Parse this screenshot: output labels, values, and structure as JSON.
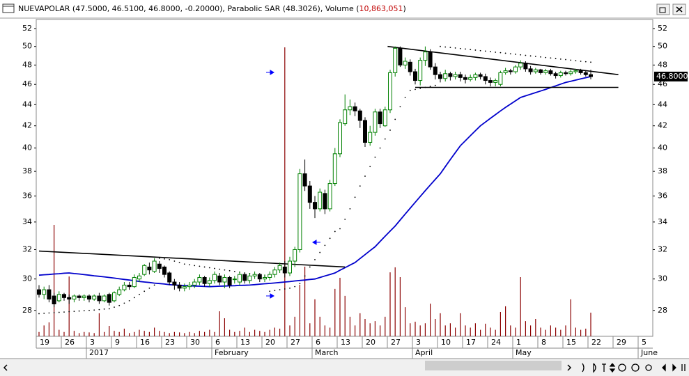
{
  "chart_data": {
    "type": "candlestick",
    "title": "NUEVAPOLAR (47.5000, 46.5100, 46.8000, -0.20000), Parabolic SAR (48.3026), Volume (",
    "volume_header": "10,863,051",
    "title_end": ")",
    "log_scale": true,
    "grid": false,
    "ylim": [
      26.45,
      53.05
    ],
    "yticks": [
      28,
      30,
      32,
      34,
      36,
      38,
      40,
      42,
      44,
      46,
      48,
      50,
      52
    ],
    "y2lim": [
      0,
      145600000
    ],
    "up_color": "#008000",
    "down_color": "#000000",
    "sar_color": "#000000",
    "ma_color": "#0000cc",
    "volume_color": "#8b0000",
    "trendline_color": "#000000",
    "last_value": {
      "value": 46.8,
      "label": "46.8000"
    },
    "categories": [
      "19",
      null,
      null,
      null,
      null,
      "26",
      null,
      null,
      null,
      null,
      "3",
      null,
      null,
      null,
      null,
      "9",
      null,
      null,
      null,
      null,
      "16",
      null,
      null,
      null,
      null,
      "23",
      null,
      null,
      null,
      null,
      "30",
      null,
      null,
      null,
      null,
      "6",
      null,
      null,
      null,
      null,
      "13",
      null,
      null,
      null,
      null,
      "20",
      null,
      null,
      null,
      null,
      "27",
      null,
      null,
      null,
      null,
      "6",
      null,
      null,
      null,
      null,
      "13",
      null,
      null,
      null,
      null,
      "20",
      null,
      null,
      null,
      null,
      "27",
      null,
      null,
      null,
      null,
      "3",
      null,
      null,
      null,
      null,
      "10",
      null,
      null,
      null,
      null,
      "17",
      null,
      null,
      null,
      null,
      "24",
      null,
      null,
      null,
      null,
      "1",
      null,
      null,
      null,
      null,
      "8",
      null,
      null,
      null,
      null,
      "15",
      null,
      null,
      null,
      null,
      "22",
      null,
      null,
      null,
      null,
      "29",
      null,
      null,
      null,
      null,
      "5"
    ],
    "month_ticks": [
      {
        "value": 10,
        "label": "2017"
      },
      {
        "value": 35,
        "label": "February"
      },
      {
        "value": 55,
        "label": "March"
      },
      {
        "value": 75,
        "label": "April"
      },
      {
        "value": 95,
        "label": "May"
      },
      {
        "value": 120,
        "label": "June"
      }
    ],
    "open": [
      29.3,
      29.0,
      29.3,
      28.9,
      28.6,
      29.0,
      28.8,
      28.7,
      28.9,
      28.8,
      28.9,
      28.7,
      28.9,
      28.6,
      29.0,
      28.6,
      29.0,
      29.3,
      29.6,
      29.5,
      30.0,
      30.3,
      30.8,
      30.5,
      31.0,
      30.8,
      30.4,
      29.8,
      29.6,
      29.4,
      29.5,
      29.6,
      29.8,
      30.1,
      29.7,
      29.9,
      30.2,
      29.8,
      30.1,
      30.0,
      29.8,
      30.3,
      29.9,
      30.2,
      30.3,
      30.0,
      30.1,
      30.3,
      30.6,
      30.8,
      30.4,
      31.2,
      32.0,
      37.8,
      36.8,
      35.5,
      35.0,
      36.2,
      35.0,
      37.0,
      39.5,
      42.2,
      43.5,
      43.8,
      43.4,
      42.5,
      40.5,
      41.4,
      43.3,
      42.0,
      43.5,
      47.2,
      49.8,
      48.0,
      48.3,
      47.3,
      46.4,
      48.5,
      49.4,
      47.8,
      47.0,
      46.6,
      47.1,
      46.8,
      47.0,
      46.7,
      46.5,
      46.7,
      47.0,
      46.8,
      46.4,
      46.2,
      46.0,
      47.2,
      47.4,
      47.3,
      47.8,
      48.2,
      47.6,
      47.3,
      47.5,
      47.2,
      47.4,
      47.1,
      46.9,
      47.2,
      47.1,
      47.3,
      47.4,
      47.2,
      47.0,
      null,
      null,
      null,
      null,
      null,
      null,
      null,
      null,
      null,
      null
    ],
    "high": [
      29.6,
      29.5,
      29.6,
      29.1,
      29.2,
      29.1,
      29.0,
      29.0,
      29.0,
      29.0,
      29.0,
      29.0,
      29.1,
      29.0,
      29.1,
      29.2,
      29.5,
      29.8,
      29.8,
      30.3,
      30.4,
      31.0,
      31.1,
      31.4,
      31.2,
      30.9,
      30.5,
      30.0,
      29.8,
      29.7,
      29.8,
      30.0,
      30.3,
      30.2,
      30.1,
      30.5,
      30.4,
      30.3,
      30.2,
      30.2,
      30.5,
      30.4,
      30.4,
      30.5,
      30.4,
      30.3,
      30.5,
      30.8,
      31.1,
      31.2,
      31.5,
      32.2,
      38.2,
      39.0,
      37.2,
      36.0,
      36.6,
      36.5,
      37.3,
      40.0,
      42.6,
      45.0,
      44.5,
      44.2,
      43.6,
      42.8,
      42.0,
      43.6,
      43.6,
      43.8,
      47.5,
      50.0,
      50.0,
      48.8,
      48.6,
      47.6,
      48.8,
      50.0,
      49.7,
      48.2,
      47.3,
      47.5,
      47.3,
      47.3,
      47.3,
      47.0,
      47.0,
      47.2,
      47.2,
      47.1,
      46.7,
      46.6,
      47.4,
      47.7,
      47.6,
      48.0,
      48.5,
      48.4,
      47.9,
      47.7,
      47.6,
      47.6,
      47.6,
      47.3,
      47.4,
      47.4,
      47.5,
      47.6,
      47.6,
      47.4,
      47.5,
      null,
      null,
      null,
      null,
      null,
      null,
      null,
      null,
      null,
      null
    ],
    "low": [
      28.8,
      28.7,
      28.5,
      28.2,
      28.5,
      28.6,
      28.4,
      28.5,
      28.6,
      28.6,
      28.5,
      28.6,
      28.4,
      28.5,
      28.3,
      28.5,
      28.9,
      29.2,
      29.3,
      29.4,
      29.8,
      30.2,
      30.3,
      30.4,
      30.4,
      30.1,
      29.6,
      29.3,
      29.2,
      29.2,
      29.3,
      29.4,
      29.6,
      29.5,
      29.5,
      29.7,
      29.6,
      29.4,
      29.4,
      29.7,
      29.6,
      29.7,
      29.7,
      30.0,
      29.8,
      29.8,
      29.9,
      30.1,
      30.4,
      30.1,
      30.2,
      30.8,
      31.8,
      36.4,
      35.0,
      34.3,
      34.8,
      34.6,
      34.8,
      36.8,
      39.2,
      42.0,
      43.0,
      42.9,
      41.8,
      40.1,
      40.2,
      41.1,
      41.8,
      41.9,
      43.2,
      46.8,
      47.8,
      47.6,
      46.9,
      46.0,
      45.9,
      47.9,
      47.5,
      46.5,
      46.2,
      46.3,
      46.4,
      46.5,
      46.3,
      46.1,
      46.3,
      46.4,
      46.5,
      46.0,
      45.8,
      45.8,
      45.8,
      47.0,
      47.0,
      47.1,
      47.5,
      47.3,
      47.0,
      47.1,
      47.0,
      47.0,
      46.9,
      46.6,
      46.7,
      46.9,
      46.9,
      47.1,
      47.0,
      46.8,
      46.51,
      null,
      null,
      null,
      null,
      null,
      null,
      null,
      null,
      null,
      null
    ],
    "close": [
      29.0,
      29.3,
      28.7,
      28.4,
      29.0,
      28.8,
      28.7,
      28.9,
      28.8,
      28.9,
      28.7,
      28.9,
      28.6,
      28.9,
      28.5,
      29.1,
      29.3,
      29.6,
      29.5,
      30.1,
      30.2,
      30.9,
      30.6,
      31.2,
      30.7,
      30.3,
      29.8,
      29.6,
      29.4,
      29.5,
      29.6,
      29.8,
      30.1,
      29.7,
      29.9,
      30.3,
      29.8,
      30.1,
      29.6,
      30.0,
      30.3,
      29.9,
      30.2,
      30.3,
      30.0,
      30.1,
      30.3,
      30.6,
      30.9,
      30.4,
      31.2,
      32.0,
      37.8,
      36.8,
      35.5,
      35.0,
      36.3,
      35.0,
      37.0,
      39.5,
      42.3,
      43.5,
      43.8,
      43.4,
      42.5,
      40.5,
      41.4,
      43.3,
      42.2,
      43.5,
      47.2,
      49.8,
      48.0,
      48.4,
      47.3,
      46.4,
      48.5,
      49.4,
      47.8,
      47.0,
      46.6,
      47.1,
      46.8,
      47.0,
      46.7,
      46.5,
      46.7,
      47.0,
      46.8,
      46.4,
      46.2,
      46.4,
      47.2,
      47.4,
      47.3,
      47.8,
      48.2,
      47.6,
      47.3,
      47.5,
      47.2,
      47.4,
      47.1,
      46.9,
      47.2,
      47.1,
      47.3,
      47.4,
      47.2,
      47.0,
      46.8,
      null,
      null,
      null,
      null,
      null,
      null,
      null,
      null,
      null,
      null
    ],
    "sar": [
      27.8,
      27.82,
      27.84,
      27.86,
      27.88,
      27.9,
      27.92,
      27.94,
      27.96,
      27.98,
      28.0,
      28.02,
      28.05,
      28.08,
      28.1,
      28.2,
      28.3,
      28.45,
      28.6,
      28.8,
      29.0,
      29.2,
      29.4,
      29.6,
      31.4,
      31.35,
      31.3,
      31.2,
      31.1,
      31.0,
      30.95,
      30.9,
      30.85,
      30.8,
      30.75,
      30.7,
      30.65,
      30.6,
      30.55,
      30.5,
      30.45,
      30.4,
      30.35,
      30.3,
      30.25,
      30.2,
      29.2,
      29.25,
      29.3,
      29.35,
      29.4,
      29.5,
      29.7,
      30.2,
      30.8,
      31.3,
      31.8,
      32.3,
      32.8,
      33.3,
      33.5,
      34.2,
      35.0,
      35.9,
      36.8,
      37.6,
      38.4,
      39.2,
      40.0,
      40.8,
      41.6,
      42.6,
      43.8,
      44.7,
      45.4,
      45.5,
      45.6,
      45.7,
      45.8,
      45.9,
      50.0,
      49.94,
      49.89,
      49.83,
      49.77,
      49.72,
      49.66,
      49.6,
      49.54,
      49.49,
      49.43,
      49.37,
      49.32,
      49.26,
      49.2,
      49.15,
      49.09,
      49.03,
      48.97,
      48.92,
      48.86,
      48.8,
      48.75,
      48.69,
      48.63,
      48.58,
      48.52,
      48.46,
      48.4,
      48.35,
      48.3026,
      null,
      null,
      null,
      null,
      null,
      null,
      null,
      null,
      null,
      null
    ],
    "moving_average": [
      30.25,
      30.28,
      30.3,
      30.33,
      30.35,
      30.38,
      30.4,
      30.36,
      30.33,
      30.29,
      30.25,
      30.21,
      30.18,
      30.14,
      30.1,
      30.06,
      30.01,
      29.97,
      29.93,
      29.89,
      29.84,
      29.8,
      29.77,
      29.73,
      29.7,
      29.67,
      29.63,
      29.6,
      29.59,
      29.57,
      29.56,
      29.54,
      29.53,
      29.51,
      29.5,
      29.51,
      29.53,
      29.54,
      29.55,
      29.56,
      29.58,
      29.59,
      29.6,
      29.63,
      29.66,
      29.69,
      29.71,
      29.74,
      29.77,
      29.8,
      29.83,
      29.87,
      29.9,
      29.93,
      29.97,
      30.0,
      30.1,
      30.2,
      30.3,
      30.4,
      30.58,
      30.75,
      30.93,
      31.1,
      31.38,
      31.65,
      31.93,
      32.2,
      32.58,
      32.95,
      33.33,
      33.7,
      34.15,
      34.6,
      35.05,
      35.5,
      35.96,
      36.42,
      36.88,
      37.34,
      37.8,
      38.4,
      39.0,
      39.6,
      40.2,
      40.65,
      41.1,
      41.55,
      42.0,
      42.35,
      42.7,
      43.05,
      43.4,
      43.73,
      44.05,
      44.38,
      44.7,
      44.86,
      45.02,
      45.18,
      45.34,
      45.5,
      45.68,
      45.85,
      46.03,
      46.2,
      46.32,
      46.44,
      46.56,
      46.68,
      46.8,
      null,
      null,
      null,
      null,
      null,
      null,
      null,
      null,
      null,
      null
    ],
    "volume": [
      2000000,
      5000000,
      6400000,
      51200000,
      3000000,
      2000000,
      27500000,
      2500000,
      1500000,
      2000000,
      1800000,
      1500000,
      10600000,
      2000000,
      4800000,
      2500000,
      2000000,
      3500000,
      1500000,
      2000000,
      3000000,
      2500000,
      2000000,
      4000000,
      2500000,
      2000000,
      1500000,
      2000000,
      1800000,
      1500000,
      2000000,
      1500000,
      2500000,
      2000000,
      3000000,
      2000000,
      11500000,
      8300000,
      3000000,
      2000000,
      2500000,
      4000000,
      2000000,
      3000000,
      2500000,
      2000000,
      3000000,
      4000000,
      3500000,
      132800000,
      5000000,
      9000000,
      23700000,
      32000000,
      6000000,
      17000000,
      9000000,
      5000000,
      4000000,
      21800000,
      26900000,
      18600000,
      9000000,
      5000000,
      10600000,
      8000000,
      6000000,
      7000000,
      5000000,
      9000000,
      29400000,
      31700000,
      27200000,
      13400000,
      6000000,
      6700000,
      5000000,
      6000000,
      15000000,
      8000000,
      10600000,
      5000000,
      6000000,
      4000000,
      10600000,
      5000000,
      4000000,
      6000000,
      3000000,
      5800000,
      4000000,
      3000000,
      11200000,
      13800000,
      5000000,
      4000000,
      27200000,
      7000000,
      5000000,
      8000000,
      4000000,
      3000000,
      5000000,
      4000000,
      3000000,
      5000000,
      17000000,
      4000000,
      3000000,
      3500000,
      10863051,
      null,
      null,
      null,
      null,
      null,
      null,
      null,
      null,
      null,
      null
    ],
    "trendlines": [
      {
        "x": [
          0,
          61
        ],
        "values": [
          31.9,
          30.8
        ]
      },
      {
        "x": [
          69.5,
          115.5
        ],
        "values": [
          50,
          47
        ]
      },
      {
        "x": [
          75,
          115.5
        ],
        "values": [
          45.7,
          45.7
        ]
      }
    ]
  }
}
